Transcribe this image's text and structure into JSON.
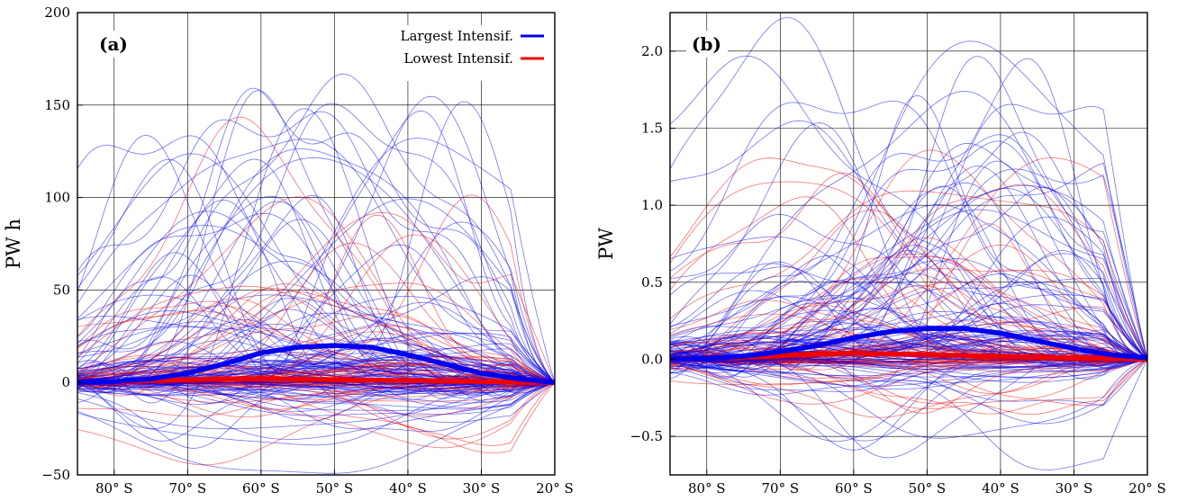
{
  "colors": {
    "largest": "#0000ee",
    "lowest": "#ee0000"
  },
  "chart_data": [
    {
      "type": "line",
      "panel_label": "(a)",
      "ylabel": "PW h",
      "xlim": [
        -85,
        -20
      ],
      "ylim": [
        -50,
        200
      ],
      "x_ticks": [
        -80,
        -70,
        -60,
        -50,
        -40,
        -30,
        -20
      ],
      "x_tick_labels": [
        "80° S",
        "70° S",
        "60° S",
        "50° S",
        "40° S",
        "30° S",
        "20° S"
      ],
      "y_ticks": [
        -50,
        0,
        50,
        100,
        150,
        200
      ],
      "y_tick_labels": [
        "−50",
        "0",
        "50",
        "100",
        "150",
        "200"
      ],
      "grid": true,
      "legend": {
        "position": "top-right",
        "entries": [
          {
            "label": "Largest Intensif.",
            "color": "#0000ee"
          },
          {
            "label": "Lowest Intensif.",
            "color": "#ee0000"
          }
        ]
      },
      "series": [
        {
          "name": "Largest Intensif.",
          "color": "#0000ee",
          "x": [
            -85,
            -80,
            -75,
            -70,
            -65,
            -60,
            -55,
            -50,
            -45,
            -40,
            -35,
            -30,
            -25,
            -20
          ],
          "y": [
            0,
            0.5,
            2,
            5,
            10,
            16,
            19,
            20,
            19,
            15,
            10,
            5,
            2,
            0
          ]
        },
        {
          "name": "Lowest Intensif.",
          "color": "#ee0000",
          "x": [
            -85,
            -80,
            -75,
            -70,
            -65,
            -60,
            -55,
            -50,
            -45,
            -40,
            -35,
            -30,
            -25,
            -20
          ],
          "y": [
            0,
            0.3,
            1,
            1.5,
            2,
            2,
            1.8,
            1.5,
            1.2,
            1,
            0.8,
            0.5,
            0.2,
            0
          ]
        }
      ],
      "ensemble": {
        "blue_members": 110,
        "red_members": 60
      }
    },
    {
      "type": "line",
      "panel_label": "(b)",
      "ylabel": "PW",
      "xlim": [
        -85,
        -20
      ],
      "ylim": [
        -0.75,
        2.25
      ],
      "x_ticks": [
        -80,
        -70,
        -60,
        -50,
        -40,
        -30,
        -20
      ],
      "x_tick_labels": [
        "80° S",
        "70° S",
        "60° S",
        "50° S",
        "40° S",
        "30° S",
        "20° S"
      ],
      "y_ticks": [
        -0.5,
        0.0,
        0.5,
        1.0,
        1.5,
        2.0
      ],
      "y_tick_labels": [
        "−0.5",
        "0.0",
        "0.5",
        "1.0",
        "1.5",
        "2.0"
      ],
      "grid": true,
      "series": [
        {
          "name": "Largest Intensif.",
          "color": "#0000ee",
          "x": [
            -85,
            -80,
            -75,
            -70,
            -65,
            -60,
            -55,
            -50,
            -45,
            -40,
            -35,
            -30,
            -25,
            -20
          ],
          "y": [
            0,
            0.005,
            0.02,
            0.05,
            0.09,
            0.14,
            0.18,
            0.2,
            0.2,
            0.17,
            0.12,
            0.07,
            0.03,
            0.01
          ]
        },
        {
          "name": "Lowest Intensif.",
          "color": "#ee0000",
          "x": [
            -85,
            -80,
            -75,
            -70,
            -65,
            -60,
            -55,
            -50,
            -45,
            -40,
            -35,
            -30,
            -25,
            -20
          ],
          "y": [
            0,
            0.005,
            0.015,
            0.025,
            0.035,
            0.04,
            0.035,
            0.03,
            0.025,
            0.02,
            0.015,
            0.01,
            0.005,
            0
          ]
        }
      ],
      "ensemble": {
        "blue_members": 110,
        "red_members": 60
      }
    }
  ]
}
